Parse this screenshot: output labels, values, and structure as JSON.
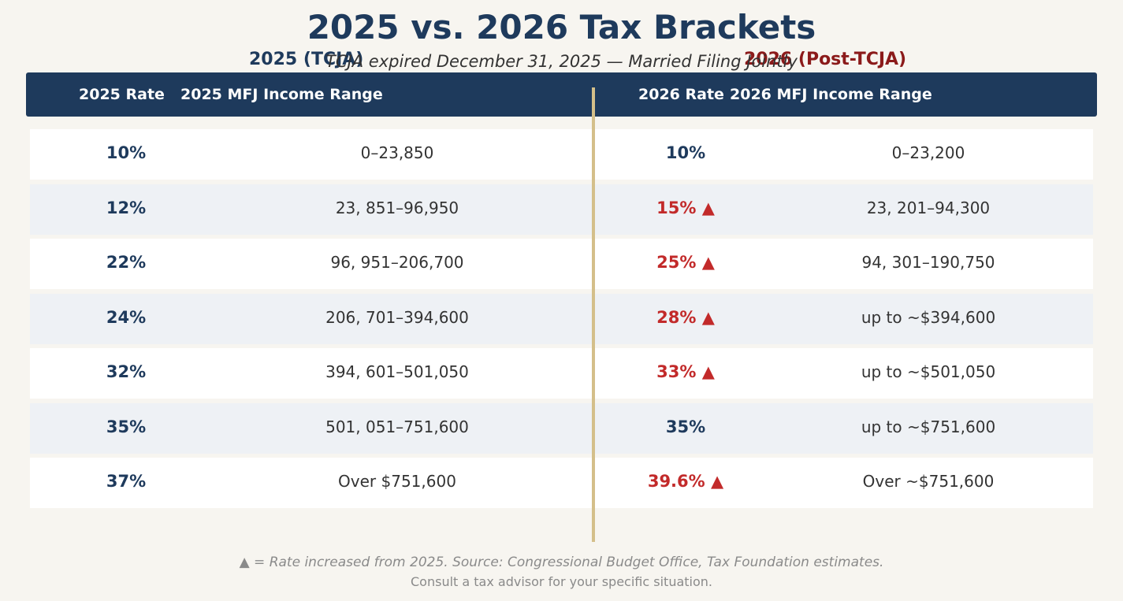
{
  "chart_data": {
    "type": "table",
    "title": "2025 vs. 2026 Tax Brackets",
    "subtitle": "TCJA expired December 31, 2025 — Married Filing Jointly",
    "groups": {
      "left": "2025 (TCJA)",
      "right": "2026 (Post-TCJA)"
    },
    "columns": [
      "2025 Rate",
      "2025 MFJ Income Range",
      "2026 Rate",
      "2026 MFJ Income Range"
    ],
    "rows": [
      {
        "rate_2025": "10%",
        "range_2025": "0–23,850",
        "rate_2026": "10%",
        "increased": false,
        "range_2026": "0–23,200"
      },
      {
        "rate_2025": "12%",
        "range_2025": "23, 851–96,950",
        "rate_2026": "15% ▲",
        "increased": true,
        "range_2026": "23, 201–94,300"
      },
      {
        "rate_2025": "22%",
        "range_2025": "96, 951–206,700",
        "rate_2026": "25% ▲",
        "increased": true,
        "range_2026": "94, 301–190,750"
      },
      {
        "rate_2025": "24%",
        "range_2025": "206, 701–394,600",
        "rate_2026": "28% ▲",
        "increased": true,
        "range_2026": "up to ~$394,600"
      },
      {
        "rate_2025": "32%",
        "range_2025": "394, 601–501,050",
        "rate_2026": "33% ▲",
        "increased": true,
        "range_2026": "up to ~$501,050"
      },
      {
        "rate_2025": "35%",
        "range_2025": "501, 051–751,600",
        "rate_2026": "35%",
        "increased": false,
        "range_2026": "up to ~$751,600"
      },
      {
        "rate_2025": "37%",
        "range_2025": "Over $751,600",
        "rate_2026": "39.6% ▲",
        "increased": true,
        "range_2026": "Over ~$751,600"
      }
    ],
    "footnote": "▲ = Rate increased from 2025. Source: Congressional Budget Office, Tax Foundation estimates.",
    "footnote2": "Consult a tax advisor for your specific situation.",
    "colors": {
      "header": "#1e3a5c",
      "increase": "#c22a2a",
      "group_2026": "#8b1a1a",
      "divider": "#d4bf8a"
    }
  }
}
